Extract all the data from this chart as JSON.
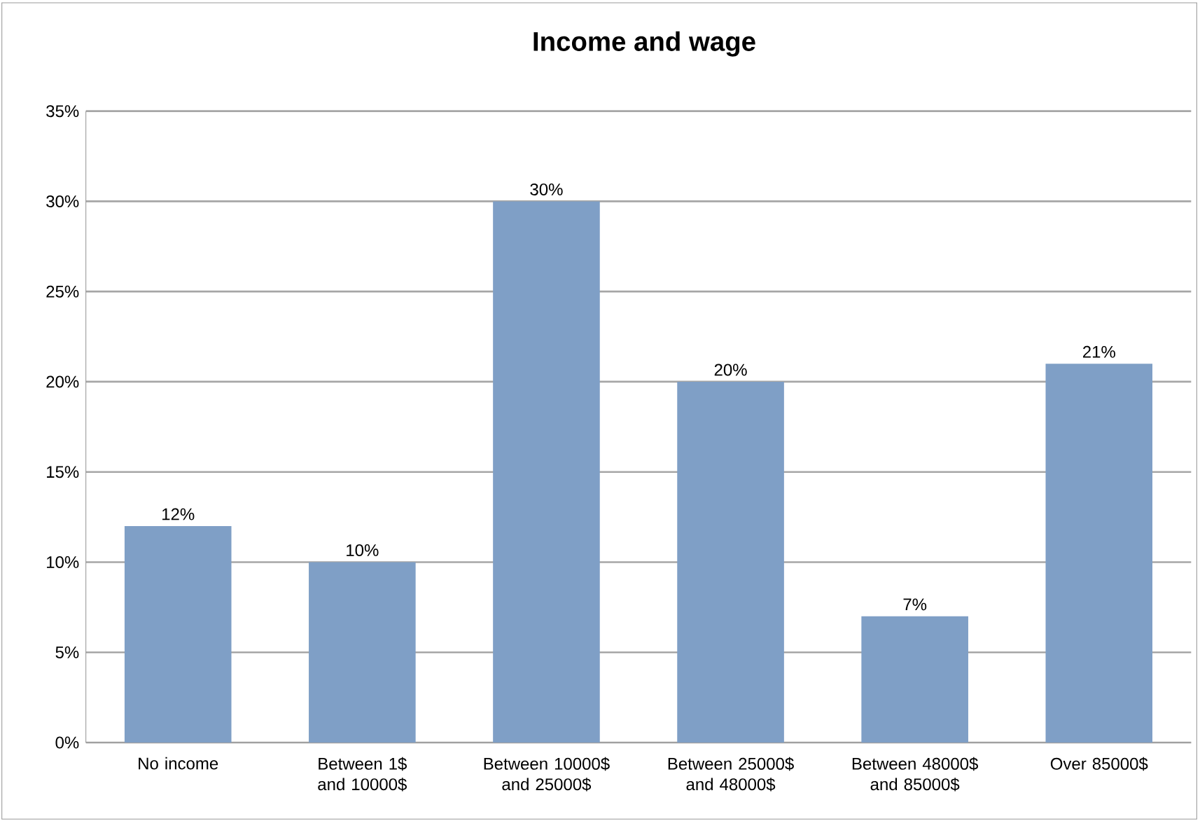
{
  "chart_data": {
    "type": "bar",
    "title": "Income and wage",
    "categories": [
      "No income",
      "Between 1$ and 10000$",
      "Between 10000$ and 25000$",
      "Between 25000$ and 48000$",
      "Between 48000$ and 85000$",
      "Over 85000$"
    ],
    "values": [
      12,
      10,
      30,
      20,
      7,
      21
    ],
    "value_labels": [
      "12%",
      "10%",
      "30%",
      "20%",
      "7%",
      "21%"
    ],
    "color": "#7f9fc6",
    "ylim": [
      0,
      35
    ],
    "yticks": [
      {
        "value": 0,
        "label": "0%"
      },
      {
        "value": 5,
        "label": "5%"
      },
      {
        "value": 10,
        "label": "10%"
      },
      {
        "value": 15,
        "label": "15%"
      },
      {
        "value": 20,
        "label": "20%"
      },
      {
        "value": 25,
        "label": "25%"
      },
      {
        "value": 30,
        "label": "30%"
      },
      {
        "value": 35,
        "label": "35%"
      }
    ],
    "grid": "y"
  }
}
